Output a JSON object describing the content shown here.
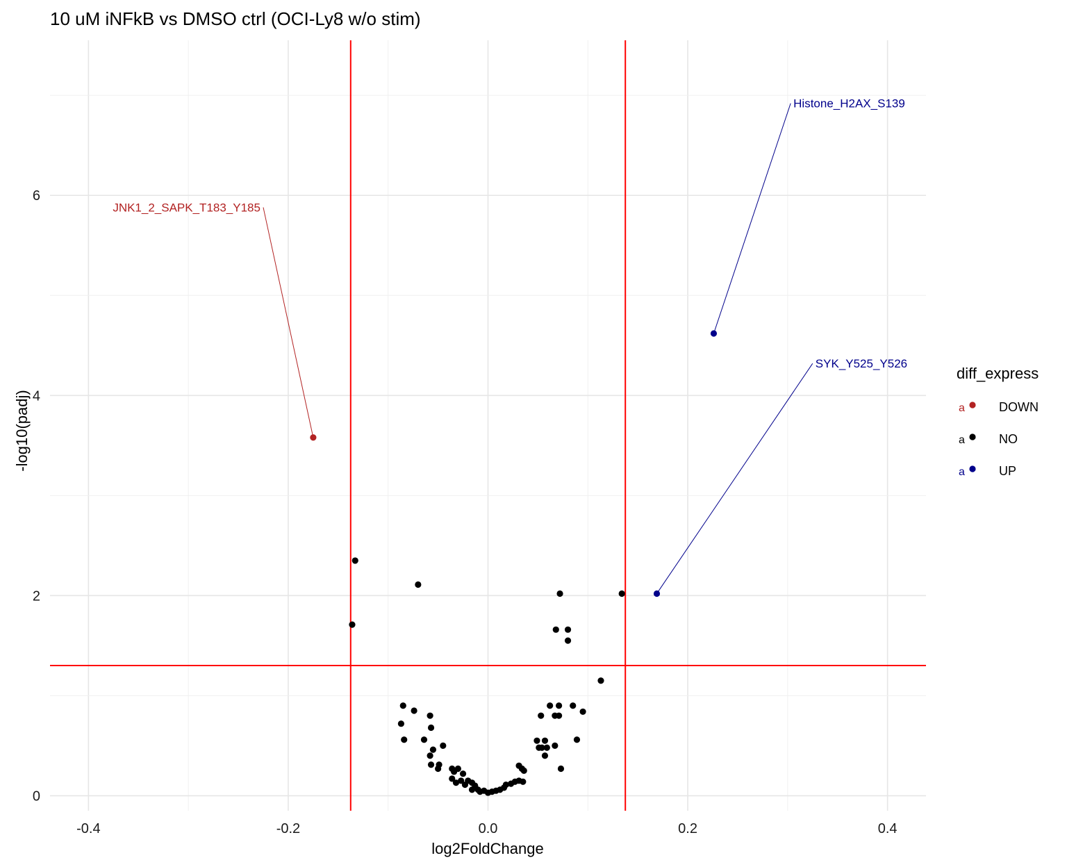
{
  "chart_data": {
    "type": "scatter",
    "title": "10 uM iNFkB vs DMSO ctrl (OCI-Ly8 w/o stim)",
    "xlabel": "log2FoldChange",
    "ylabel": "-log10(padj)",
    "xlim": [
      -0.4385,
      0.4385
    ],
    "ylim": [
      -0.15,
      7.55
    ],
    "xticks": [
      -0.4,
      -0.2,
      0.0,
      0.2,
      0.4
    ],
    "xtick_labels": [
      "-0.4",
      "-0.2",
      "0.0",
      "0.2",
      "0.4"
    ],
    "yticks": [
      0,
      2,
      4,
      6
    ],
    "ytick_labels": [
      "0",
      "2",
      "4",
      "6"
    ],
    "grid": true,
    "thresholds": {
      "vlines": [
        -0.1375,
        0.1375
      ],
      "hline": 1.301,
      "color": "#ff0000"
    },
    "legend": {
      "title": "diff_express",
      "position": "right",
      "key_text": "a",
      "entries": [
        {
          "label": "DOWN",
          "color": "#b22222"
        },
        {
          "label": "NO",
          "color": "#000000"
        },
        {
          "label": "UP",
          "color": "#00008b"
        }
      ]
    },
    "series": [
      {
        "name": "DOWN",
        "color": "#b22222",
        "points": [
          [
            -0.175,
            3.58
          ]
        ]
      },
      {
        "name": "NO",
        "color": "#000000",
        "points": [
          [
            -0.133,
            2.35
          ],
          [
            -0.136,
            1.71
          ],
          [
            -0.07,
            2.11
          ],
          [
            0.072,
            2.02
          ],
          [
            0.134,
            2.02
          ],
          [
            0.068,
            1.66
          ],
          [
            0.08,
            1.66
          ],
          [
            0.08,
            1.55
          ],
          [
            0.113,
            1.15
          ],
          [
            -0.085,
            0.9
          ],
          [
            -0.074,
            0.85
          ],
          [
            -0.058,
            0.8
          ],
          [
            -0.087,
            0.72
          ],
          [
            -0.057,
            0.68
          ],
          [
            -0.084,
            0.56
          ],
          [
            -0.064,
            0.56
          ],
          [
            -0.055,
            0.46
          ],
          [
            -0.045,
            0.5
          ],
          [
            -0.058,
            0.4
          ],
          [
            -0.05,
            0.27
          ],
          [
            -0.049,
            0.31
          ],
          [
            -0.057,
            0.31
          ],
          [
            -0.036,
            0.27
          ],
          [
            -0.03,
            0.27
          ],
          [
            -0.034,
            0.24
          ],
          [
            -0.025,
            0.22
          ],
          [
            -0.036,
            0.17
          ],
          [
            -0.032,
            0.13
          ],
          [
            -0.027,
            0.15
          ],
          [
            -0.023,
            0.11
          ],
          [
            -0.02,
            0.15
          ],
          [
            -0.016,
            0.13
          ],
          [
            -0.013,
            0.1
          ],
          [
            -0.01,
            0.06
          ],
          [
            -0.016,
            0.06
          ],
          [
            -0.008,
            0.04
          ],
          [
            -0.004,
            0.05
          ],
          [
            0.0,
            0.03
          ],
          [
            0.004,
            0.04
          ],
          [
            0.008,
            0.05
          ],
          [
            0.012,
            0.06
          ],
          [
            0.016,
            0.08
          ],
          [
            0.018,
            0.11
          ],
          [
            0.023,
            0.12
          ],
          [
            0.027,
            0.14
          ],
          [
            0.031,
            0.15
          ],
          [
            0.035,
            0.14
          ],
          [
            0.031,
            0.3
          ],
          [
            0.034,
            0.27
          ],
          [
            0.036,
            0.25
          ],
          [
            0.049,
            0.55
          ],
          [
            0.051,
            0.48
          ],
          [
            0.054,
            0.48
          ],
          [
            0.057,
            0.55
          ],
          [
            0.059,
            0.48
          ],
          [
            0.057,
            0.4
          ],
          [
            0.053,
            0.8
          ],
          [
            0.062,
            0.9
          ],
          [
            0.067,
            0.8
          ],
          [
            0.071,
            0.8
          ],
          [
            0.071,
            0.9
          ],
          [
            0.067,
            0.5
          ],
          [
            0.073,
            0.27
          ],
          [
            0.085,
            0.9
          ],
          [
            0.089,
            0.56
          ],
          [
            0.095,
            0.84
          ]
        ]
      },
      {
        "name": "UP",
        "color": "#00008b",
        "points": [
          [
            0.226,
            4.62
          ],
          [
            0.169,
            2.02
          ]
        ]
      }
    ],
    "annotations": [
      {
        "text": "JNK1_2_SAPK_T183_Y185",
        "point": [
          -0.175,
          3.58
        ],
        "label_at": [
          -0.225,
          5.88
        ],
        "anchor": "end",
        "color": "#b22222"
      },
      {
        "text": "Histone_H2AX_S139",
        "point": [
          0.226,
          4.62
        ],
        "label_at": [
          0.303,
          6.92
        ],
        "anchor": "start",
        "color": "#00008b"
      },
      {
        "text": "SYK_Y525_Y526",
        "point": [
          0.169,
          2.02
        ],
        "label_at": [
          0.325,
          4.32
        ],
        "anchor": "start",
        "color": "#00008b"
      }
    ]
  }
}
